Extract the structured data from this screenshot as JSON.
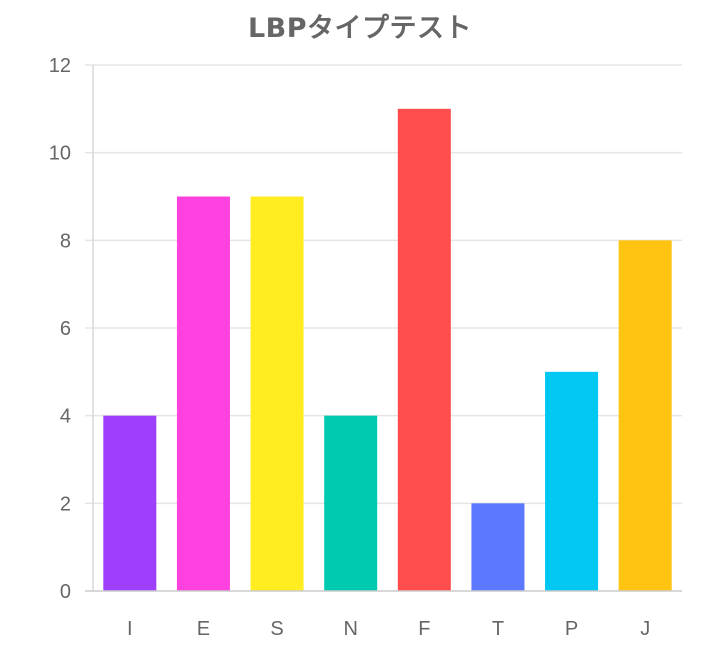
{
  "chart_data": {
    "type": "bar",
    "title": "LBPタイプテスト",
    "xlabel": "",
    "ylabel": "",
    "categories": [
      "I",
      "E",
      "S",
      "N",
      "F",
      "T",
      "P",
      "J"
    ],
    "values": [
      4,
      9,
      9,
      4,
      11,
      2,
      5,
      8
    ],
    "colors": [
      "#9E3FFD",
      "#FF41DF",
      "#FFED22",
      "#00CBB1",
      "#FF4C4C",
      "#5B78FE",
      "#00C8F2",
      "#FFC411"
    ],
    "ylim": [
      0,
      12
    ],
    "yticks": [
      0,
      2,
      4,
      6,
      8,
      10,
      12
    ],
    "grid": true,
    "legend": "none"
  }
}
